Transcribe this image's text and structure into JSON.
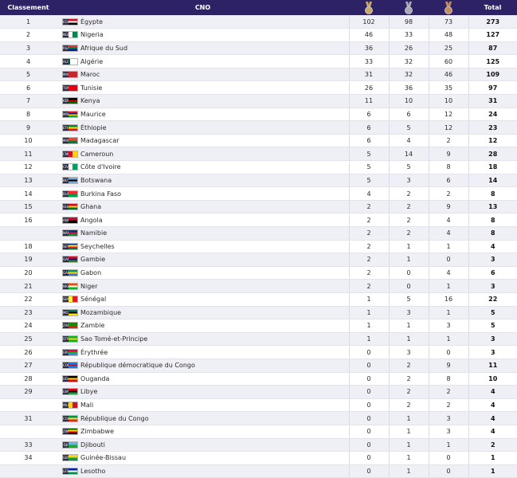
{
  "header": {
    "rank": "Classement",
    "cno": "CNO",
    "total": "Total"
  },
  "medal_icons": [
    {
      "name": "gold-medal-icon",
      "color": "#c8a96a"
    },
    {
      "name": "silver-medal-icon",
      "color": "#a9a9b6"
    },
    {
      "name": "bronze-medal-icon",
      "color": "#c58d63"
    }
  ],
  "rows": [
    {
      "rank": "1",
      "code": "EGY",
      "country": "Égypte",
      "gold": "102",
      "silver": "98",
      "bronze": "73",
      "total": "273",
      "flag": [
        "#ce1126",
        "#ffffff",
        "#000000"
      ],
      "dir": "h"
    },
    {
      "rank": "2",
      "code": "NGR",
      "country": "Nigeria",
      "gold": "46",
      "silver": "33",
      "bronze": "48",
      "total": "127",
      "flag": [
        "#008751",
        "#ffffff",
        "#008751"
      ],
      "dir": "v"
    },
    {
      "rank": "3",
      "code": "RSA",
      "country": "Afrique du Sud",
      "gold": "36",
      "silver": "26",
      "bronze": "25",
      "total": "87",
      "flag": [
        "#de3831",
        "#007a4d",
        "#002395"
      ],
      "dir": "h"
    },
    {
      "rank": "4",
      "code": "ALG",
      "country": "Algérie",
      "gold": "33",
      "silver": "32",
      "bronze": "60",
      "total": "125",
      "flag": [
        "#006233",
        "#ffffff"
      ],
      "dir": "v"
    },
    {
      "rank": "5",
      "code": "MAR",
      "country": "Maroc",
      "gold": "31",
      "silver": "32",
      "bronze": "46",
      "total": "109",
      "flag": [
        "#c1272d"
      ],
      "dir": "h"
    },
    {
      "rank": "6",
      "code": "TUN",
      "country": "Tunisie",
      "gold": "26",
      "silver": "36",
      "bronze": "35",
      "total": "97",
      "flag": [
        "#e70013"
      ],
      "dir": "h"
    },
    {
      "rank": "7",
      "code": "KEN",
      "country": "Kenya",
      "gold": "11",
      "silver": "10",
      "bronze": "10",
      "total": "31",
      "flag": [
        "#000000",
        "#bb0000",
        "#006600"
      ],
      "dir": "h"
    },
    {
      "rank": "8",
      "code": "MRI",
      "country": "Maurice",
      "gold": "6",
      "silver": "6",
      "bronze": "12",
      "total": "24",
      "flag": [
        "#ea2839",
        "#1a206d",
        "#ffd500",
        "#00a551"
      ],
      "dir": "h"
    },
    {
      "rank": "9",
      "code": "ETH",
      "country": "Éthiopie",
      "gold": "6",
      "silver": "5",
      "bronze": "12",
      "total": "23",
      "flag": [
        "#078930",
        "#fcdd09",
        "#da121a"
      ],
      "dir": "h"
    },
    {
      "rank": "10",
      "code": "MAD",
      "country": "Madagascar",
      "gold": "6",
      "silver": "4",
      "bronze": "2",
      "total": "12",
      "flag": [
        "#fc3d32",
        "#007e3a"
      ],
      "dir": "h"
    },
    {
      "rank": "11",
      "code": "CMR",
      "country": "Cameroun",
      "gold": "5",
      "silver": "14",
      "bronze": "9",
      "total": "28",
      "flag": [
        "#007a5e",
        "#ce1126",
        "#fcd116"
      ],
      "dir": "v"
    },
    {
      "rank": "12",
      "code": "CIV",
      "country": "Côte d'Ivoire",
      "gold": "5",
      "silver": "5",
      "bronze": "8",
      "total": "18",
      "flag": [
        "#f77f00",
        "#ffffff",
        "#009e60"
      ],
      "dir": "v"
    },
    {
      "rank": "13",
      "code": "BOT",
      "country": "Botswana",
      "gold": "5",
      "silver": "3",
      "bronze": "6",
      "total": "14",
      "flag": [
        "#75aadb",
        "#000000",
        "#75aadb"
      ],
      "dir": "h"
    },
    {
      "rank": "14",
      "code": "BUR",
      "country": "Burkina Faso",
      "gold": "4",
      "silver": "2",
      "bronze": "2",
      "total": "8",
      "flag": [
        "#ef2b2d",
        "#009e49"
      ],
      "dir": "h"
    },
    {
      "rank": "15",
      "code": "GHA",
      "country": "Ghana",
      "gold": "2",
      "silver": "2",
      "bronze": "9",
      "total": "13",
      "flag": [
        "#ce1126",
        "#fcd116",
        "#006b3f"
      ],
      "dir": "h"
    },
    {
      "rank": "16",
      "code": "ANG",
      "country": "Angola",
      "gold": "2",
      "silver": "2",
      "bronze": "4",
      "total": "8",
      "flag": [
        "#cc092f",
        "#000000"
      ],
      "dir": "h"
    },
    {
      "rank": "",
      "code": "NAM",
      "country": "Namibie",
      "gold": "2",
      "silver": "2",
      "bronze": "4",
      "total": "8",
      "flag": [
        "#003580",
        "#d21034",
        "#009543"
      ],
      "dir": "h"
    },
    {
      "rank": "18",
      "code": "SEY",
      "country": "Seychelles",
      "gold": "2",
      "silver": "1",
      "bronze": "1",
      "total": "4",
      "flag": [
        "#003f87",
        "#fcd856",
        "#d62828",
        "#007a3d"
      ],
      "dir": "h"
    },
    {
      "rank": "19",
      "code": "GAM",
      "country": "Gambie",
      "gold": "2",
      "silver": "1",
      "bronze": "0",
      "total": "3",
      "flag": [
        "#ce1126",
        "#0c1c8c",
        "#3a7728"
      ],
      "dir": "h"
    },
    {
      "rank": "20",
      "code": "GAB",
      "country": "Gabon",
      "gold": "2",
      "silver": "0",
      "bronze": "4",
      "total": "6",
      "flag": [
        "#009e60",
        "#fcd116",
        "#3a75c4"
      ],
      "dir": "h"
    },
    {
      "rank": "21",
      "code": "NIG",
      "country": "Niger",
      "gold": "2",
      "silver": "0",
      "bronze": "1",
      "total": "3",
      "flag": [
        "#e05206",
        "#ffffff",
        "#0db02b"
      ],
      "dir": "h"
    },
    {
      "rank": "22",
      "code": "SEN",
      "country": "Sénégal",
      "gold": "1",
      "silver": "5",
      "bronze": "16",
      "total": "22",
      "flag": [
        "#00853f",
        "#fdef42",
        "#e31b23"
      ],
      "dir": "v"
    },
    {
      "rank": "23",
      "code": "MOZ",
      "country": "Mozambique",
      "gold": "1",
      "silver": "3",
      "bronze": "1",
      "total": "5",
      "flag": [
        "#007168",
        "#000000",
        "#fce100"
      ],
      "dir": "h"
    },
    {
      "rank": "24",
      "code": "ZAM",
      "country": "Zambie",
      "gold": "1",
      "silver": "1",
      "bronze": "3",
      "total": "5",
      "flag": [
        "#198a00",
        "#198a00",
        "#de2010"
      ],
      "dir": "h"
    },
    {
      "rank": "25",
      "code": "STP",
      "country": "Sao Tomé-et-Principe",
      "gold": "1",
      "silver": "1",
      "bronze": "1",
      "total": "3",
      "flag": [
        "#12ad2b",
        "#ffce00",
        "#12ad2b"
      ],
      "dir": "h"
    },
    {
      "rank": "26",
      "code": "ERI",
      "country": "Érythrée",
      "gold": "0",
      "silver": "3",
      "bronze": "0",
      "total": "3",
      "flag": [
        "#ea0437",
        "#12ad2b",
        "#4189dd"
      ],
      "dir": "h"
    },
    {
      "rank": "27",
      "code": "COD",
      "country": "République démocratique du Congo",
      "gold": "0",
      "silver": "2",
      "bronze": "9",
      "total": "11",
      "flag": [
        "#007fff",
        "#ce1021",
        "#007fff"
      ],
      "dir": "h"
    },
    {
      "rank": "28",
      "code": "UGA",
      "country": "Ouganda",
      "gold": "0",
      "silver": "2",
      "bronze": "8",
      "total": "10",
      "flag": [
        "#000000",
        "#fcdc04",
        "#d90000"
      ],
      "dir": "h"
    },
    {
      "rank": "29",
      "code": "LBA",
      "country": "Libye",
      "gold": "0",
      "silver": "2",
      "bronze": "2",
      "total": "4",
      "flag": [
        "#e70013",
        "#000000",
        "#239e46"
      ],
      "dir": "h"
    },
    {
      "rank": "",
      "code": "MLI",
      "country": "Mali",
      "gold": "0",
      "silver": "2",
      "bronze": "2",
      "total": "4",
      "flag": [
        "#14b53a",
        "#fcd116",
        "#ce1126"
      ],
      "dir": "v"
    },
    {
      "rank": "31",
      "code": "CGO",
      "country": "République du Congo",
      "gold": "0",
      "silver": "1",
      "bronze": "3",
      "total": "4",
      "flag": [
        "#009543",
        "#fbde4a",
        "#dc241f"
      ],
      "dir": "h"
    },
    {
      "rank": "",
      "code": "ZIM",
      "country": "Zimbabwe",
      "gold": "0",
      "silver": "1",
      "bronze": "3",
      "total": "4",
      "flag": [
        "#006400",
        "#ffd200",
        "#d40000",
        "#000000"
      ],
      "dir": "h"
    },
    {
      "rank": "33",
      "code": "DJI",
      "country": "Djibouti",
      "gold": "0",
      "silver": "1",
      "bronze": "1",
      "total": "2",
      "flag": [
        "#6ab2e7",
        "#12ad2b"
      ],
      "dir": "h"
    },
    {
      "rank": "34",
      "code": "GBS",
      "country": "Guinée-Bissau",
      "gold": "0",
      "silver": "1",
      "bronze": "0",
      "total": "1",
      "flag": [
        "#fcd116",
        "#009e49"
      ],
      "dir": "h"
    },
    {
      "rank": "",
      "code": "LES",
      "country": "Lesotho",
      "gold": "0",
      "silver": "1",
      "bronze": "0",
      "total": "1",
      "flag": [
        "#00209f",
        "#ffffff",
        "#009543"
      ],
      "dir": "h"
    }
  ]
}
